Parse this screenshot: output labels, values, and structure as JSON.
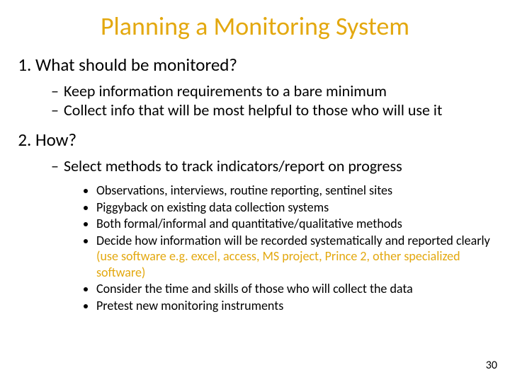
{
  "colors": {
    "title": "#e3a80f",
    "body": "#000000",
    "accent": "#e3a80f",
    "background": "#ffffff"
  },
  "typography": {
    "title_fontsize": 36,
    "numbered_fontsize": 25,
    "dash_fontsize": 22,
    "bullet_fontsize": 18,
    "pagenum_fontsize": 16,
    "font_family": "Calibri"
  },
  "title": "Planning a Monitoring System",
  "sections": [
    {
      "heading": "What should be monitored?",
      "dash_items": [
        {
          "text": "Keep information requirements to a bare minimum"
        },
        {
          "text": "Collect info that will be most helpful to those who will use it"
        }
      ]
    },
    {
      "heading": "How?",
      "dash_items": [
        {
          "text": "Select methods to track indicators/report on progress",
          "bullets": [
            {
              "plain": "Observations, interviews, routine reporting, sentinel sites"
            },
            {
              "plain": "Piggyback on existing data collection systems"
            },
            {
              "plain": "Both formal/informal and quantitative/qualitative methods"
            },
            {
              "plain": "Decide how information will be recorded systematically and reported clearly ",
              "accent": "(use software e.g. excel, access, MS project, Prince 2, other specialized software)"
            },
            {
              "plain": "Consider the time and skills of those who will collect the data"
            },
            {
              "plain": "Pretest new monitoring instruments"
            }
          ]
        }
      ]
    }
  ],
  "page_number": "30"
}
